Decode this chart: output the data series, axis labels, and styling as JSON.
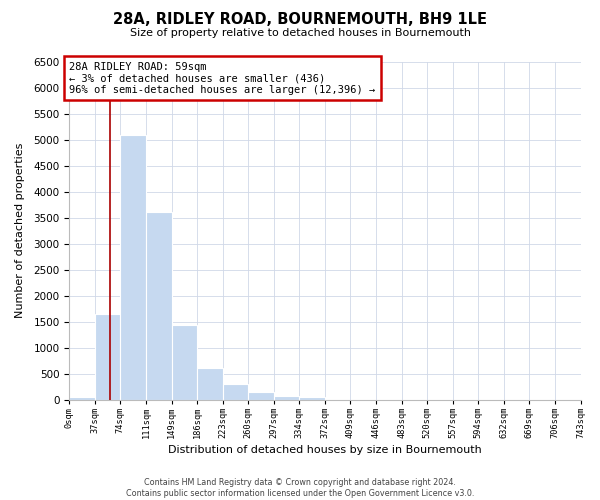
{
  "title": "28A, RIDLEY ROAD, BOURNEMOUTH, BH9 1LE",
  "subtitle": "Size of property relative to detached houses in Bournemouth",
  "xlabel": "Distribution of detached houses by size in Bournemouth",
  "ylabel": "Number of detached properties",
  "bar_values": [
    50,
    1650,
    5080,
    3600,
    1430,
    610,
    300,
    150,
    60,
    50,
    0,
    0,
    0,
    0,
    0,
    0,
    0,
    0,
    0,
    0
  ],
  "bar_labels": [
    "0sqm",
    "37sqm",
    "74sqm",
    "111sqm",
    "149sqm",
    "186sqm",
    "223sqm",
    "260sqm",
    "297sqm",
    "334sqm",
    "372sqm",
    "409sqm",
    "446sqm",
    "483sqm",
    "520sqm",
    "557sqm",
    "594sqm",
    "632sqm",
    "669sqm",
    "706sqm",
    "743sqm"
  ],
  "bar_color": "#c6d9f0",
  "bar_edge_color": "#ffffff",
  "property_line_color": "#aa0000",
  "annotation_line1": "28A RIDLEY ROAD: 59sqm",
  "annotation_line2": "← 3% of detached houses are smaller (436)",
  "annotation_line3": "96% of semi-detached houses are larger (12,396) →",
  "ylim": [
    0,
    6500
  ],
  "yticks": [
    0,
    500,
    1000,
    1500,
    2000,
    2500,
    3000,
    3500,
    4000,
    4500,
    5000,
    5500,
    6000,
    6500
  ],
  "footer_line1": "Contains HM Land Registry data © Crown copyright and database right 2024.",
  "footer_line2": "Contains public sector information licensed under the Open Government Licence v3.0.",
  "background_color": "#ffffff",
  "grid_color": "#d0d8e8"
}
